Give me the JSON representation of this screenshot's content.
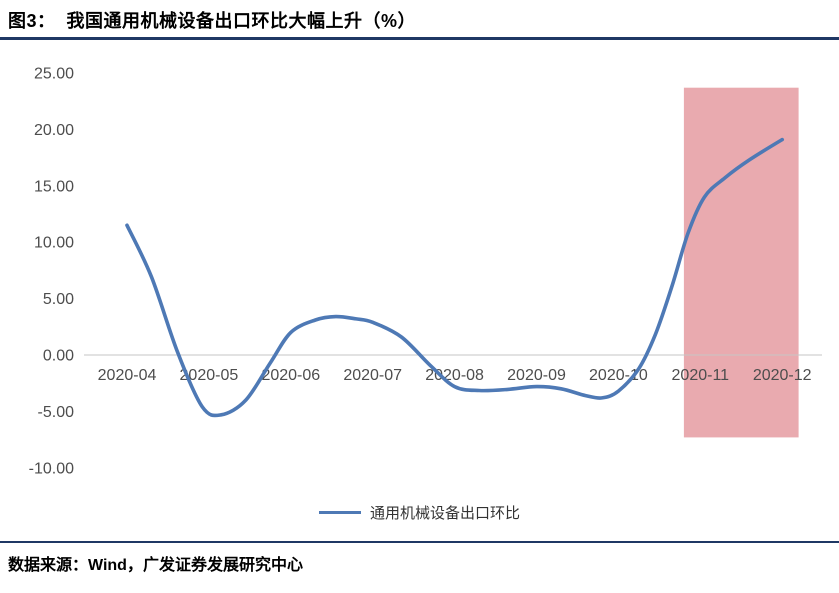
{
  "header": {
    "title": "图3：  我国通用机械设备出口环比大幅上升（%）"
  },
  "footer": {
    "source": "数据来源：Wind，广发证券发展研究中心"
  },
  "legend": {
    "label": "通用机械设备出口环比"
  },
  "colors": {
    "line": "#4E79B5",
    "highlight": "#E7A1A6",
    "title_rule": "#1F3864",
    "footer_rule": "#1F3864",
    "axis_text": "#4D4D4D",
    "axis_line": "#C6C6C6",
    "background": "#FFFFFF"
  },
  "chart_data": {
    "type": "line",
    "title": "我国通用机械设备出口环比大幅上升（%）",
    "xlabel": "",
    "ylabel": "",
    "categories": [
      "2020-04",
      "2020-05",
      "2020-06",
      "2020-07",
      "2020-08",
      "2020-09",
      "2020-10",
      "2020-11",
      "2020-12"
    ],
    "series": [
      {
        "name": "通用机械设备出口环比",
        "color": "#4E79B5",
        "values": [
          11.5,
          -5.3,
          2.0,
          2.9,
          -2.8,
          -2.8,
          -3.2,
          13.5,
          19.1
        ]
      }
    ],
    "ylim": [
      -10,
      25
    ],
    "y_ticks": [
      25,
      20,
      15,
      10,
      5,
      0,
      -5,
      -10
    ],
    "y_tick_format": "0.00",
    "grid": false,
    "legend_position": "bottom-center",
    "highlight_region": {
      "note": "pink band highlighting 2020-11 to 2020-12",
      "x_from_index": 6.8,
      "x_to_index": 8.2,
      "value_top": 23.7,
      "value_bottom": -7.3
    },
    "shape_points": [
      [
        0,
        11.5
      ],
      [
        0.3,
        6.9
      ],
      [
        0.62,
        0.2
      ],
      [
        0.92,
        -4.6
      ],
      [
        1.15,
        -5.3
      ],
      [
        1.45,
        -4.0
      ],
      [
        1.75,
        -0.7
      ],
      [
        2.0,
        2.0
      ],
      [
        2.3,
        3.1
      ],
      [
        2.55,
        3.4
      ],
      [
        2.8,
        3.2
      ],
      [
        3.0,
        2.9
      ],
      [
        3.35,
        1.6
      ],
      [
        3.7,
        -0.9
      ],
      [
        4.0,
        -2.8
      ],
      [
        4.3,
        -3.15
      ],
      [
        4.65,
        -3.05
      ],
      [
        5.0,
        -2.8
      ],
      [
        5.3,
        -3.0
      ],
      [
        5.6,
        -3.6
      ],
      [
        5.8,
        -3.8
      ],
      [
        6.0,
        -3.2
      ],
      [
        6.25,
        -1.2
      ],
      [
        6.45,
        1.8
      ],
      [
        6.65,
        6.0
      ],
      [
        6.85,
        10.8
      ],
      [
        7.05,
        14.0
      ],
      [
        7.3,
        15.7
      ],
      [
        7.6,
        17.3
      ],
      [
        8.0,
        19.1
      ]
    ]
  }
}
